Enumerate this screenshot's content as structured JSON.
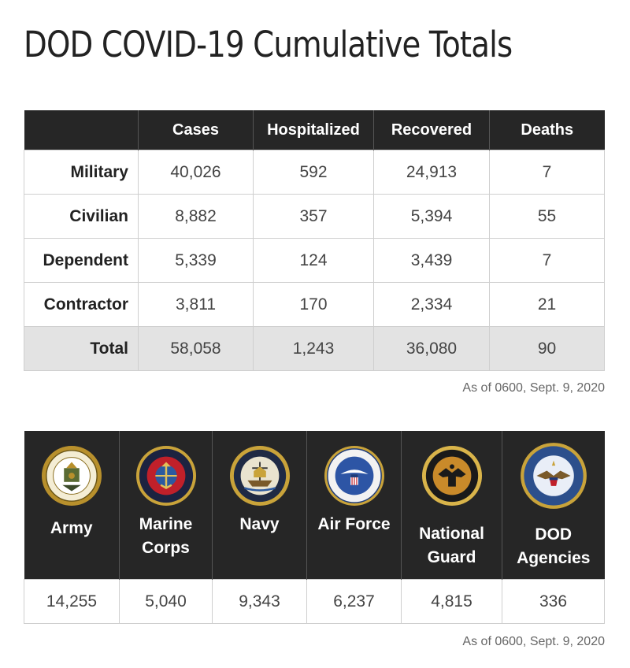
{
  "title": "DOD COVID-19 Cumulative Totals",
  "totals_table": {
    "headers": [
      "",
      "Cases",
      "Hospitalized",
      "Recovered",
      "Deaths"
    ],
    "rows": [
      {
        "label": "Military",
        "values": [
          "40,026",
          "592",
          "24,913",
          "7"
        ]
      },
      {
        "label": "Civilian",
        "values": [
          "8,882",
          "357",
          "5,394",
          "55"
        ]
      },
      {
        "label": "Dependent",
        "values": [
          "5,339",
          "124",
          "3,439",
          "7"
        ]
      },
      {
        "label": "Contractor",
        "values": [
          "3,811",
          "170",
          "2,334",
          "21"
        ]
      },
      {
        "label": "Total",
        "values": [
          "58,058",
          "1,243",
          "36,080",
          "90"
        ]
      }
    ],
    "note": "As of 0600, Sept. 9, 2020"
  },
  "branches_table": {
    "branches": [
      {
        "name": "Army",
        "seal": "army-seal-icon",
        "cases": "14,255"
      },
      {
        "name": "Marine\nCorps",
        "seal": "marine-corps-seal-icon",
        "cases": "5,040"
      },
      {
        "name": "Navy",
        "seal": "navy-seal-icon",
        "cases": "9,343"
      },
      {
        "name": "Air Force",
        "seal": "air-force-seal-icon",
        "cases": "6,237"
      },
      {
        "name": "National\nGuard",
        "seal": "national-guard-seal-icon",
        "cases": "4,815"
      },
      {
        "name": "DOD\nAgencies",
        "seal": "dod-seal-icon",
        "cases": "336"
      }
    ],
    "note": "As of 0600, Sept. 9, 2020"
  },
  "colors": {
    "header_bg": "#262626",
    "total_row_bg": "#e3e3e3",
    "border": "#cfcfcf"
  }
}
